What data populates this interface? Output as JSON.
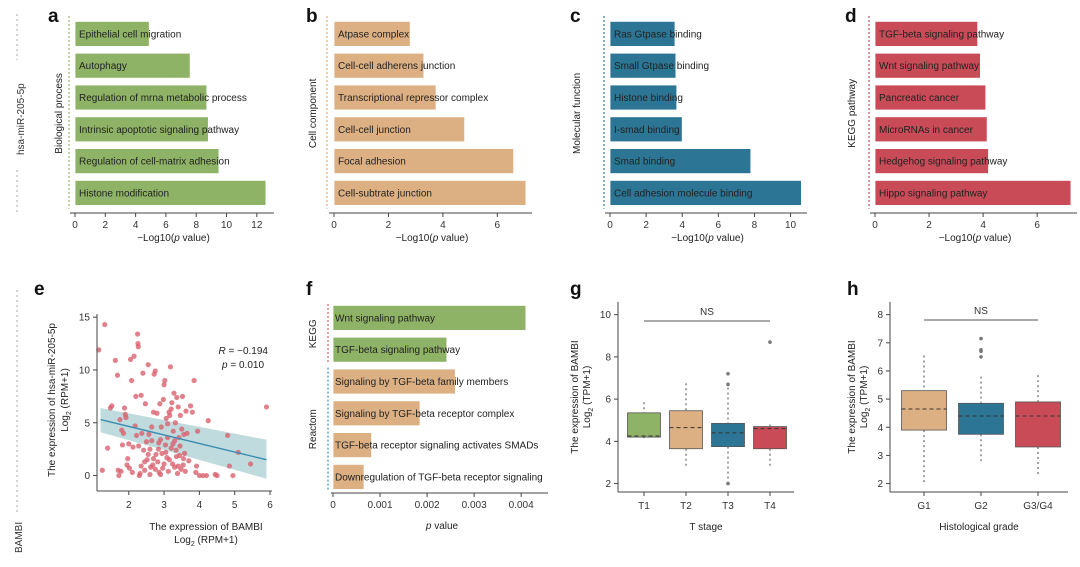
{
  "side_labels": {
    "top": "hsa-miR-205-5p",
    "bottom": "BAMBI"
  },
  "colors": {
    "green": "#8fb366",
    "tan": "#ddb084",
    "blue": "#2c7595",
    "red": "#c94b57",
    "band": "#a9cfd1",
    "line": "#3a8db0",
    "point": "#d9616e"
  },
  "chart_data": [
    {
      "panel": "a",
      "type": "bar",
      "orientation": "horizontal",
      "group_label": "Biological process",
      "xlabel": "−Log10(p value)",
      "xlim": [
        0,
        13
      ],
      "xticks": [
        0,
        2,
        4,
        6,
        8,
        10,
        12
      ],
      "color": "green",
      "categories": [
        "Epithelial cell migration",
        "Autophagy",
        "Regulation of mrna metabolic process",
        "Intrinsic apoptotic signaling pathway",
        "Regulation of cell-matrix adhesion",
        "Histone modification"
      ],
      "values": [
        4.9,
        7.6,
        8.7,
        8.8,
        9.5,
        12.6
      ]
    },
    {
      "panel": "b",
      "type": "bar",
      "orientation": "horizontal",
      "group_label": "Cell component",
      "xlabel": "−Log10(p value)",
      "xlim": [
        0,
        7.2
      ],
      "xticks": [
        0,
        2,
        4,
        6
      ],
      "color": "tan",
      "categories": [
        "Atpase complex",
        "Cell-cell adherens junction",
        "Transcriptional repressor complex",
        "Cell-cell junction",
        "Focal adhesion",
        "Cell-subtrate junction"
      ],
      "values": [
        2.8,
        3.3,
        3.75,
        4.8,
        6.6,
        7.05
      ]
    },
    {
      "panel": "c",
      "type": "bar",
      "orientation": "horizontal",
      "group_label": "Molecular function",
      "xlabel": "−Log10(p value)",
      "xlim": [
        0,
        10.8
      ],
      "xticks": [
        0,
        2,
        4,
        6,
        8,
        10
      ],
      "color": "blue",
      "categories": [
        "Ras Gtpase binding",
        "Small Gtpase binding",
        "Histone binding",
        "I-smad binding",
        "Smad binding",
        "Cell adhesion molecule binding"
      ],
      "values": [
        3.6,
        3.65,
        3.7,
        4.0,
        7.8,
        10.6
      ]
    },
    {
      "panel": "d",
      "type": "bar",
      "orientation": "horizontal",
      "group_label": "KEGG pathway",
      "xlabel": "−Log10(p value)",
      "xlim": [
        0,
        7.4
      ],
      "xticks": [
        0,
        2,
        4,
        6
      ],
      "color": "red",
      "categories": [
        "TGF-beta signaling pathway",
        "Wnt signaling pathway",
        "Pancreatic cancer",
        "MicroRNAs in cancer",
        "Hedgehog signaling pathway",
        "Hippo signaling pathway"
      ],
      "values": [
        3.8,
        3.9,
        4.1,
        4.15,
        4.2,
        7.25
      ]
    },
    {
      "panel": "e",
      "type": "scatter",
      "xlabel": "The expression of BAMBI",
      "xlabel2": "Log2 (RPM+1)",
      "ylabel": "The expression of hsa-miR-205-5p",
      "ylabel2": "Log2 (RPM+1)",
      "xlim": [
        1.1,
        6.0
      ],
      "ylim": [
        -0.8,
        15.3
      ],
      "xticks": [
        2,
        3,
        4,
        5,
        6
      ],
      "yticks": [
        0,
        5,
        10,
        15
      ],
      "annotation": {
        "r": "R = −0.194",
        "p": "p = 0.010"
      },
      "fit": {
        "x": [
          1.2,
          5.9
        ],
        "y": [
          5.3,
          1.5
        ],
        "ci_upper": [
          6.4,
          3.4
        ],
        "ci_lower": [
          4.1,
          -0.3
        ]
      },
      "points": [
        [
          1.15,
          11.9
        ],
        [
          1.32,
          14.3
        ],
        [
          1.25,
          0.5
        ],
        [
          1.4,
          2.6
        ],
        [
          1.48,
          6.4
        ],
        [
          1.52,
          6.6
        ],
        [
          1.62,
          10.9
        ],
        [
          1.68,
          9.5
        ],
        [
          1.7,
          0.5
        ],
        [
          1.72,
          0
        ],
        [
          1.75,
          5.3
        ],
        [
          1.78,
          0.4
        ],
        [
          1.8,
          4.3
        ],
        [
          1.82,
          2.9
        ],
        [
          1.85,
          4.0
        ],
        [
          1.88,
          6.4
        ],
        [
          1.9,
          5.8
        ],
        [
          1.92,
          5.5
        ],
        [
          1.95,
          1.0
        ],
        [
          1.97,
          1.6
        ],
        [
          2.0,
          3.0
        ],
        [
          2.02,
          0.7
        ],
        [
          2.05,
          11.0
        ],
        [
          2.08,
          9.0
        ],
        [
          2.1,
          0.3
        ],
        [
          2.12,
          2.7
        ],
        [
          2.15,
          11.3
        ],
        [
          2.18,
          4.7
        ],
        [
          2.2,
          7.5
        ],
        [
          2.22,
          3.8
        ],
        [
          2.25,
          13.4
        ],
        [
          2.26,
          12.5
        ],
        [
          2.27,
          12.2
        ],
        [
          2.28,
          2.8
        ],
        [
          2.3,
          0
        ],
        [
          2.32,
          0.2
        ],
        [
          2.35,
          7.6
        ],
        [
          2.37,
          4.0
        ],
        [
          2.4,
          9.7
        ],
        [
          2.42,
          2.4
        ],
        [
          2.45,
          0.5
        ],
        [
          2.47,
          6.8
        ],
        [
          2.5,
          3.2
        ],
        [
          2.52,
          1.5
        ],
        [
          2.55,
          10.5
        ],
        [
          2.57,
          3.9
        ],
        [
          2.6,
          2.5
        ],
        [
          2.62,
          0.8
        ],
        [
          2.65,
          4.6
        ],
        [
          2.68,
          1.0
        ],
        [
          2.7,
          6.0
        ],
        [
          2.72,
          9.6
        ],
        [
          2.75,
          9.9
        ],
        [
          2.77,
          2.0
        ],
        [
          2.8,
          5.9
        ],
        [
          2.82,
          1.3
        ],
        [
          2.84,
          2.5
        ],
        [
          2.86,
          0.3
        ],
        [
          2.88,
          6.8
        ],
        [
          2.9,
          3.4
        ],
        [
          2.92,
          4.6
        ],
        [
          2.94,
          2.1
        ],
        [
          2.96,
          0.7
        ],
        [
          2.98,
          7.2
        ],
        [
          3.0,
          8.6
        ],
        [
          3.02,
          9.0
        ],
        [
          3.04,
          2.9
        ],
        [
          3.06,
          5.4
        ],
        [
          3.08,
          1.7
        ],
        [
          3.1,
          3.6
        ],
        [
          3.12,
          0.4
        ],
        [
          3.14,
          6.0
        ],
        [
          3.16,
          5.7
        ],
        [
          3.18,
          10.3
        ],
        [
          3.2,
          2.6
        ],
        [
          3.22,
          6.9
        ],
        [
          3.24,
          1.1
        ],
        [
          3.26,
          4.2
        ],
        [
          3.28,
          7.8
        ],
        [
          3.3,
          0.8
        ],
        [
          3.32,
          5.0
        ],
        [
          3.34,
          2.4
        ],
        [
          3.36,
          7.4
        ],
        [
          3.38,
          0.2
        ],
        [
          3.4,
          6.5
        ],
        [
          3.42,
          3.6
        ],
        [
          3.44,
          1.9
        ],
        [
          3.46,
          5.7
        ],
        [
          3.48,
          0.6
        ],
        [
          3.5,
          4.4
        ],
        [
          3.52,
          7.5
        ],
        [
          3.54,
          1.0
        ],
        [
          3.56,
          3.9
        ],
        [
          3.58,
          2.1
        ],
        [
          3.6,
          0.4
        ],
        [
          3.62,
          6.1
        ],
        [
          3.65,
          4.0
        ],
        [
          3.7,
          1.4
        ],
        [
          3.75,
          6.6
        ],
        [
          3.8,
          6.0
        ],
        [
          3.85,
          9.0
        ],
        [
          3.9,
          0.3
        ],
        [
          3.92,
          0.9
        ],
        [
          3.95,
          4.2
        ],
        [
          4.0,
          0
        ],
        [
          4.1,
          0
        ],
        [
          4.2,
          0
        ],
        [
          4.25,
          5.2
        ],
        [
          4.45,
          0.1
        ],
        [
          4.5,
          0
        ],
        [
          4.8,
          3.8
        ],
        [
          4.85,
          0.9
        ],
        [
          4.95,
          0
        ],
        [
          5.1,
          2.2
        ],
        [
          5.45,
          1.1
        ],
        [
          5.9,
          6.5
        ],
        [
          2.7,
          1.6
        ],
        [
          2.85,
          3.1
        ],
        [
          3.05,
          2.2
        ],
        [
          3.15,
          1.5
        ],
        [
          3.25,
          3.0
        ],
        [
          3.35,
          1.8
        ],
        [
          3.45,
          2.8
        ],
        [
          2.55,
          2.0
        ],
        [
          2.65,
          3.3
        ],
        [
          2.35,
          0.9
        ],
        [
          2.45,
          1.3
        ],
        [
          2.75,
          0.6
        ],
        [
          3.55,
          1.6
        ],
        [
          3.3,
          3.3
        ],
        [
          3.0,
          1.1
        ],
        [
          2.9,
          0.1
        ],
        [
          3.1,
          4.9
        ],
        [
          3.2,
          6.3
        ],
        [
          2.6,
          0.1
        ],
        [
          3.4,
          0.9
        ]
      ]
    },
    {
      "panel": "f",
      "type": "bar",
      "orientation": "horizontal",
      "xlabel": "p value",
      "xlim": [
        0,
        0.0044
      ],
      "xticks": [
        "0",
        "0.001",
        "0.002",
        "0.003",
        "0.004"
      ],
      "xtick_values": [
        0,
        0.001,
        0.002,
        0.003,
        0.004
      ],
      "groups": [
        {
          "label": "KEGG",
          "color": "green",
          "count": 2
        },
        {
          "label": "Reactom",
          "color": "tan",
          "count": 4
        }
      ],
      "categories": [
        "Wnt signaling pathway",
        "TGF-beta signaling pathway",
        "Signaling by TGF-beta family members",
        "Signaling by TGF-beta receptor complex",
        "TGF-beta receptor signaling activates SMADs",
        "Downregulation of TGF-beta receptor signaling"
      ],
      "values": [
        0.0041,
        0.00242,
        0.0026,
        0.00185,
        0.00082,
        0.00066
      ]
    },
    {
      "panel": "g",
      "type": "box",
      "xlabel": "T stage",
      "ylabel": "The expression of BAMBI",
      "ylabel2": "Log2 (TPM+1)",
      "ylim": [
        1.6,
        10.6
      ],
      "yticks": [
        2,
        4,
        6,
        8,
        10
      ],
      "significance": "NS",
      "categories": [
        "T1",
        "T2",
        "T3",
        "T4"
      ],
      "colors": [
        "green",
        "tan",
        "blue",
        "red"
      ],
      "boxes": [
        {
          "min": 4.15,
          "q1": 4.2,
          "median": 4.25,
          "q3": 5.35,
          "max": 5.85,
          "outliers": []
        },
        {
          "min": 2.8,
          "q1": 3.65,
          "median": 4.65,
          "q3": 5.45,
          "max": 6.75,
          "outliers": []
        },
        {
          "min": 2.0,
          "q1": 3.75,
          "median": 4.4,
          "q3": 4.85,
          "max": 6.55,
          "outliers": [
            7.2,
            6.7,
            2.0
          ]
        },
        {
          "min": 2.75,
          "q1": 3.65,
          "median": 4.6,
          "q3": 4.7,
          "max": 4.8,
          "outliers": [
            8.7
          ]
        }
      ]
    },
    {
      "panel": "h",
      "type": "box",
      "xlabel": "Histological grade",
      "ylabel": "The expression of BAMBI",
      "ylabel2": "Log2 (TPM+1)",
      "ylim": [
        1.7,
        8.45
      ],
      "yticks": [
        2,
        3,
        4,
        5,
        6,
        7,
        8
      ],
      "significance": "NS",
      "categories": [
        "G1",
        "G2",
        "G3/G4"
      ],
      "colors": [
        "tan",
        "blue",
        "red"
      ],
      "boxes": [
        {
          "min": 2.0,
          "q1": 3.9,
          "median": 4.65,
          "q3": 5.3,
          "max": 6.55,
          "outliers": []
        },
        {
          "min": 2.7,
          "q1": 3.75,
          "median": 4.4,
          "q3": 4.85,
          "max": 5.8,
          "outliers": [
            7.15,
            6.75,
            6.7,
            6.5
          ]
        },
        {
          "min": 2.3,
          "q1": 3.3,
          "median": 4.4,
          "q3": 4.9,
          "max": 5.85,
          "outliers": []
        }
      ]
    }
  ]
}
